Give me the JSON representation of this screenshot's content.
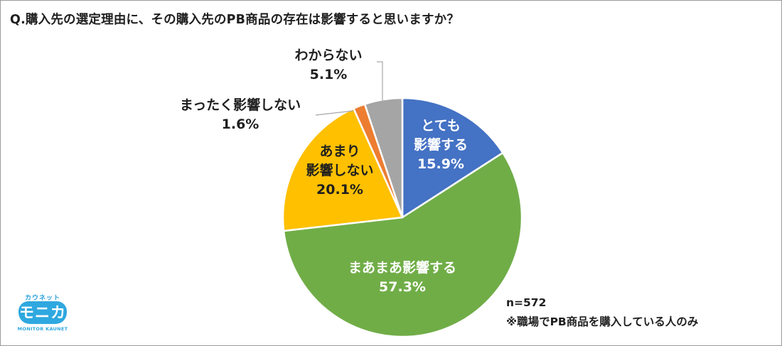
{
  "title": "Q.購入先の選定理由に、その購入先のPB商品の存在は影響すると思いますか？",
  "chart_data": {
    "type": "pie",
    "slices": [
      {
        "label_lines": [
          "とても",
          "影響する"
        ],
        "value": 15.9,
        "value_label": "15.9%",
        "color": "#4472c4"
      },
      {
        "label_lines": [
          "まあまあ影響する"
        ],
        "value": 57.3,
        "value_label": "57.3%",
        "color": "#70ad47"
      },
      {
        "label_lines": [
          "あまり",
          "影響しない"
        ],
        "value": 20.1,
        "value_label": "20.1%",
        "color": "#ffc000"
      },
      {
        "label_lines": [
          "まったく影響しない"
        ],
        "value": 1.6,
        "value_label": "1.6%",
        "color": "#ed7d31"
      },
      {
        "label_lines": [
          "わからない"
        ],
        "value": 5.1,
        "value_label": "5.1%",
        "color": "#a5a5a5"
      }
    ],
    "start": "12 o'clock",
    "direction": "clockwise"
  },
  "notes": {
    "sample": "n=572",
    "footnote": "※職場でPB商品を購入している人のみ"
  },
  "logo": {
    "top_text": "カウネット",
    "main_text": "モニカ",
    "sub_text": "MONITOR KAUNET"
  }
}
